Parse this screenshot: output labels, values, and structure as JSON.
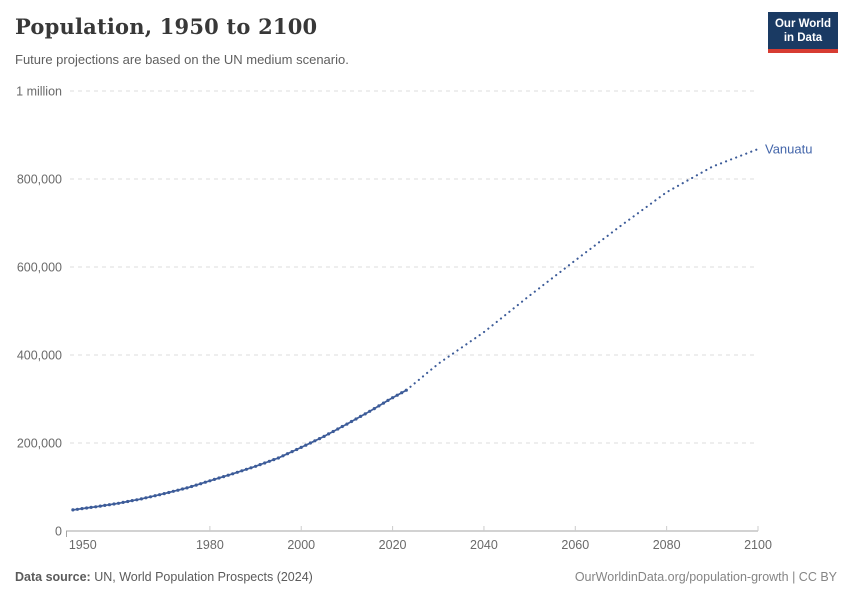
{
  "header": {
    "title": "Population, 1950 to 2100",
    "subtitle": "Future projections are based on the UN medium scenario.",
    "logo": {
      "line1": "Our World",
      "line2": "in Data"
    }
  },
  "footer": {
    "source_label": "Data source:",
    "source_text": " UN, World Population Prospects (2024)",
    "right_text": "OurWorldinData.org/population-growth | CC BY"
  },
  "colors": {
    "line": "#3d5c99",
    "entity_label": "#4466aa",
    "logo_bg": "#1a3a63",
    "logo_red": "#d73c32",
    "gridline": "#dcdcdc",
    "axis": "#a5a5a5",
    "tick": "#cccccc"
  },
  "chart_data": {
    "type": "line",
    "title": "Population, 1950 to 2100",
    "subtitle": "Future projections are based on the UN medium scenario.",
    "entity": "Vanuatu",
    "xlabel": "",
    "ylabel": "",
    "xlim": [
      1950,
      2100
    ],
    "ylim": [
      0,
      1000000
    ],
    "grid": true,
    "legend_position": "end-of-line label",
    "x_ticks": [
      1950,
      1980,
      2000,
      2020,
      2040,
      2060,
      2080,
      2100
    ],
    "y_ticks": [
      {
        "value": 0,
        "label": "0"
      },
      {
        "value": 200000,
        "label": "200,000"
      },
      {
        "value": 400000,
        "label": "400,000"
      },
      {
        "value": 600000,
        "label": "600,000"
      },
      {
        "value": 800000,
        "label": "800,000"
      },
      {
        "value": 1000000,
        "label": "1 million"
      }
    ],
    "series": [
      {
        "name": "Vanuatu (historical)",
        "segment": "historical",
        "style": "solid-with-yearly-dots",
        "color": "#3d5c99",
        "points": [
          [
            1950,
            48000
          ],
          [
            1955,
            55000
          ],
          [
            1960,
            63000
          ],
          [
            1965,
            73000
          ],
          [
            1970,
            85000
          ],
          [
            1975,
            98000
          ],
          [
            1980,
            114000
          ],
          [
            1985,
            130000
          ],
          [
            1990,
            147000
          ],
          [
            1995,
            166000
          ],
          [
            2000,
            190000
          ],
          [
            2005,
            215000
          ],
          [
            2010,
            243000
          ],
          [
            2015,
            272000
          ],
          [
            2020,
            303000
          ],
          [
            2023,
            320000
          ]
        ]
      },
      {
        "name": "Vanuatu (UN medium projection)",
        "segment": "projection",
        "style": "dotted",
        "color": "#3d5c99",
        "points": [
          [
            2023,
            320000
          ],
          [
            2030,
            380000
          ],
          [
            2040,
            452000
          ],
          [
            2050,
            535000
          ],
          [
            2060,
            615000
          ],
          [
            2070,
            694000
          ],
          [
            2080,
            770000
          ],
          [
            2090,
            828000
          ],
          [
            2100,
            868000
          ]
        ]
      }
    ]
  }
}
